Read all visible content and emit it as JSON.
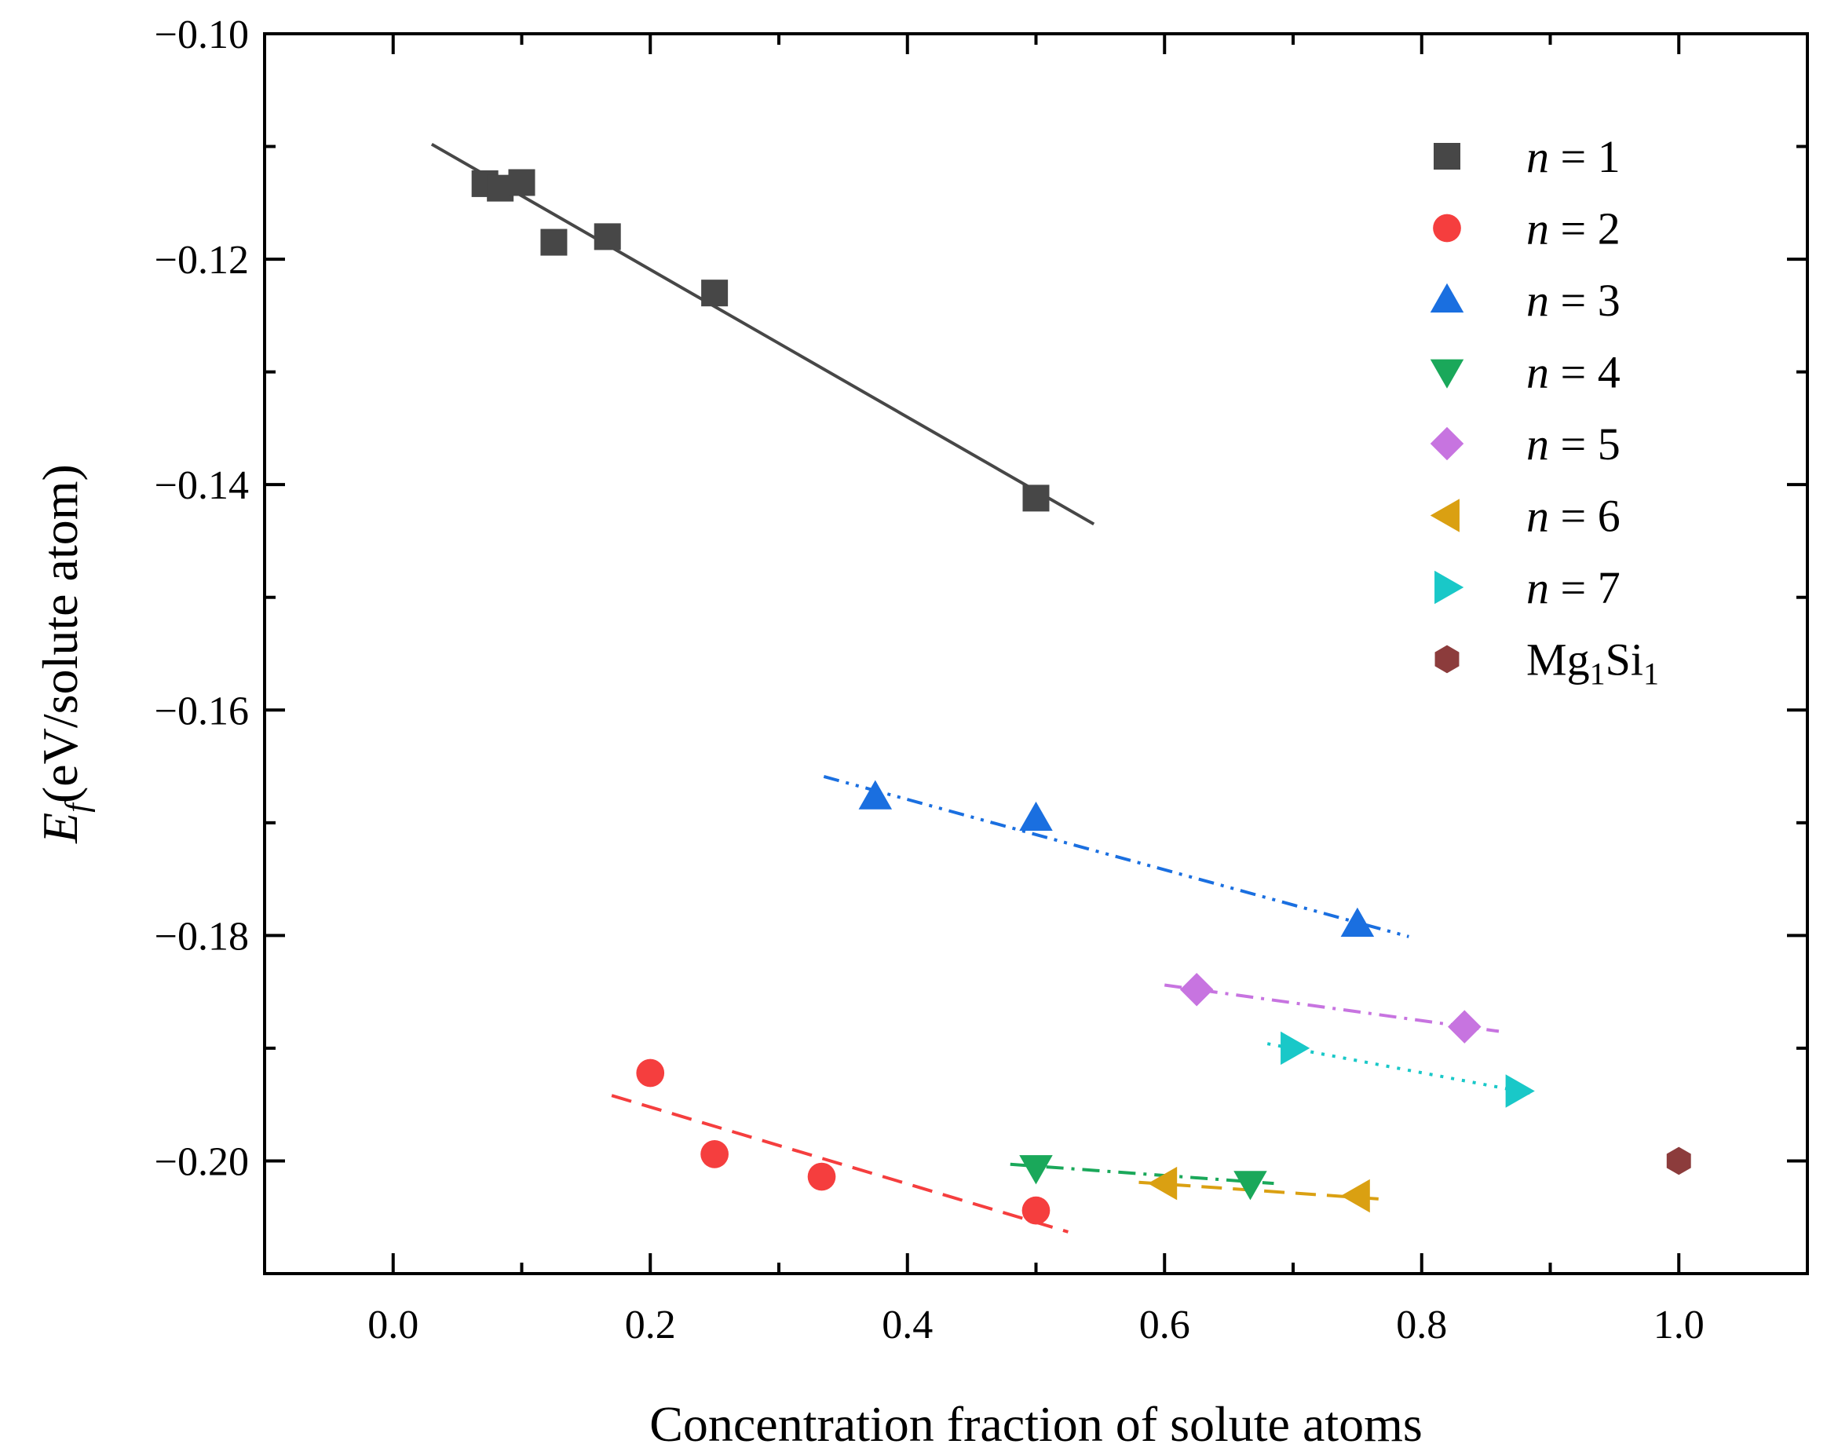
{
  "chart_data": {
    "type": "scatter",
    "title": "",
    "xlabel": "Concentration fraction of solute atoms",
    "ylabel": {
      "symbol": "E",
      "subscript": "f",
      "unit": "(eV/solute atom)"
    },
    "xlim": [
      -0.1,
      1.1
    ],
    "ylim": [
      -0.21,
      -0.1
    ],
    "x_ticks": [
      0.0,
      0.2,
      0.4,
      0.6,
      0.8,
      1.0
    ],
    "x_tick_labels": [
      "0.0",
      "0.2",
      "0.4",
      "0.6",
      "0.8",
      "1.0"
    ],
    "y_ticks": [
      -0.1,
      -0.12,
      -0.14,
      -0.16,
      -0.18,
      -0.2
    ],
    "y_tick_labels": [
      "−0.10",
      "−0.12",
      "−0.14",
      "−0.16",
      "−0.18",
      "−0.20"
    ],
    "grid": false,
    "legend_position": "top-right",
    "series": [
      {
        "name": "n = 1",
        "label_var": "n",
        "label_rest": " = 1",
        "marker": "square",
        "color": "#474747",
        "line_style": "solid",
        "x": [
          0.0714,
          0.0833,
          0.1,
          0.125,
          0.1667,
          0.25,
          0.5
        ],
        "y": [
          -0.1133,
          -0.1137,
          -0.1132,
          -0.1185,
          -0.118,
          -0.123,
          -0.1412
        ],
        "fit": {
          "x": [
            0.03,
            0.545
          ],
          "y": [
            -0.1098,
            -0.1435
          ]
        }
      },
      {
        "name": "n = 2",
        "label_var": "n",
        "label_rest": " = 2",
        "marker": "circle",
        "color": "#f53e3e",
        "line_style": "dashed",
        "x": [
          0.2,
          0.25,
          0.3333,
          0.5
        ],
        "y": [
          -0.1922,
          -0.1994,
          -0.2014,
          -0.2044
        ],
        "fit": {
          "x": [
            0.17,
            0.525
          ],
          "y": [
            -0.1942,
            -0.2063
          ]
        }
      },
      {
        "name": "n = 3",
        "label_var": "n",
        "label_rest": " = 3",
        "marker": "triangle-up",
        "color": "#1a6fe0",
        "line_style": "dash-dot-dot",
        "x": [
          0.375,
          0.5,
          0.75
        ],
        "y": [
          -0.1677,
          -0.1696,
          -0.179
        ],
        "fit": {
          "x": [
            0.335,
            0.79
          ],
          "y": [
            -0.1659,
            -0.1801
          ]
        }
      },
      {
        "name": "n = 4",
        "label_var": "n",
        "label_rest": " = 4",
        "marker": "triangle-down",
        "color": "#1aa85a",
        "line_style": "dash-dot",
        "x": [
          0.5,
          0.6667
        ],
        "y": [
          -0.2006,
          -0.202
        ],
        "fit": {
          "x": [
            0.48,
            0.685
          ],
          "y": [
            -0.2003,
            -0.202
          ]
        }
      },
      {
        "name": "n = 5",
        "label_var": "n",
        "label_rest": " = 5",
        "marker": "diamond",
        "color": "#c774e0",
        "line_style": "dash-dot",
        "x": [
          0.625,
          0.8333
        ],
        "y": [
          -0.1848,
          -0.1881
        ],
        "fit": {
          "x": [
            0.6,
            0.86
          ],
          "y": [
            -0.1844,
            -0.1885
          ]
        }
      },
      {
        "name": "n = 6",
        "label_var": "n",
        "label_rest": " = 6",
        "marker": "triangle-left",
        "color": "#daa012",
        "line_style": "dashed",
        "x": [
          0.6,
          0.75
        ],
        "y": [
          -0.202,
          -0.2031
        ],
        "fit": {
          "x": [
            0.58,
            0.77
          ],
          "y": [
            -0.2019,
            -0.2034
          ]
        }
      },
      {
        "name": "n = 7",
        "label_var": "n",
        "label_rest": " = 7",
        "marker": "triangle-right",
        "color": "#19c8c8",
        "line_style": "dotted",
        "x": [
          0.7,
          0.875
        ],
        "y": [
          -0.19,
          -0.1938
        ],
        "fit": {
          "x": [
            0.68,
            0.885
          ],
          "y": [
            -0.1896,
            -0.194
          ]
        }
      },
      {
        "name": "Mg1Si1",
        "label_var": "",
        "label_rest": "Mg1Si1",
        "label_parts": [
          "Mg",
          "1",
          "Si",
          "1"
        ],
        "marker": "hexagon",
        "color": "#8c3c3c",
        "line_style": "none",
        "x": [
          1.0
        ],
        "y": [
          -0.2
        ],
        "fit": null
      }
    ]
  }
}
